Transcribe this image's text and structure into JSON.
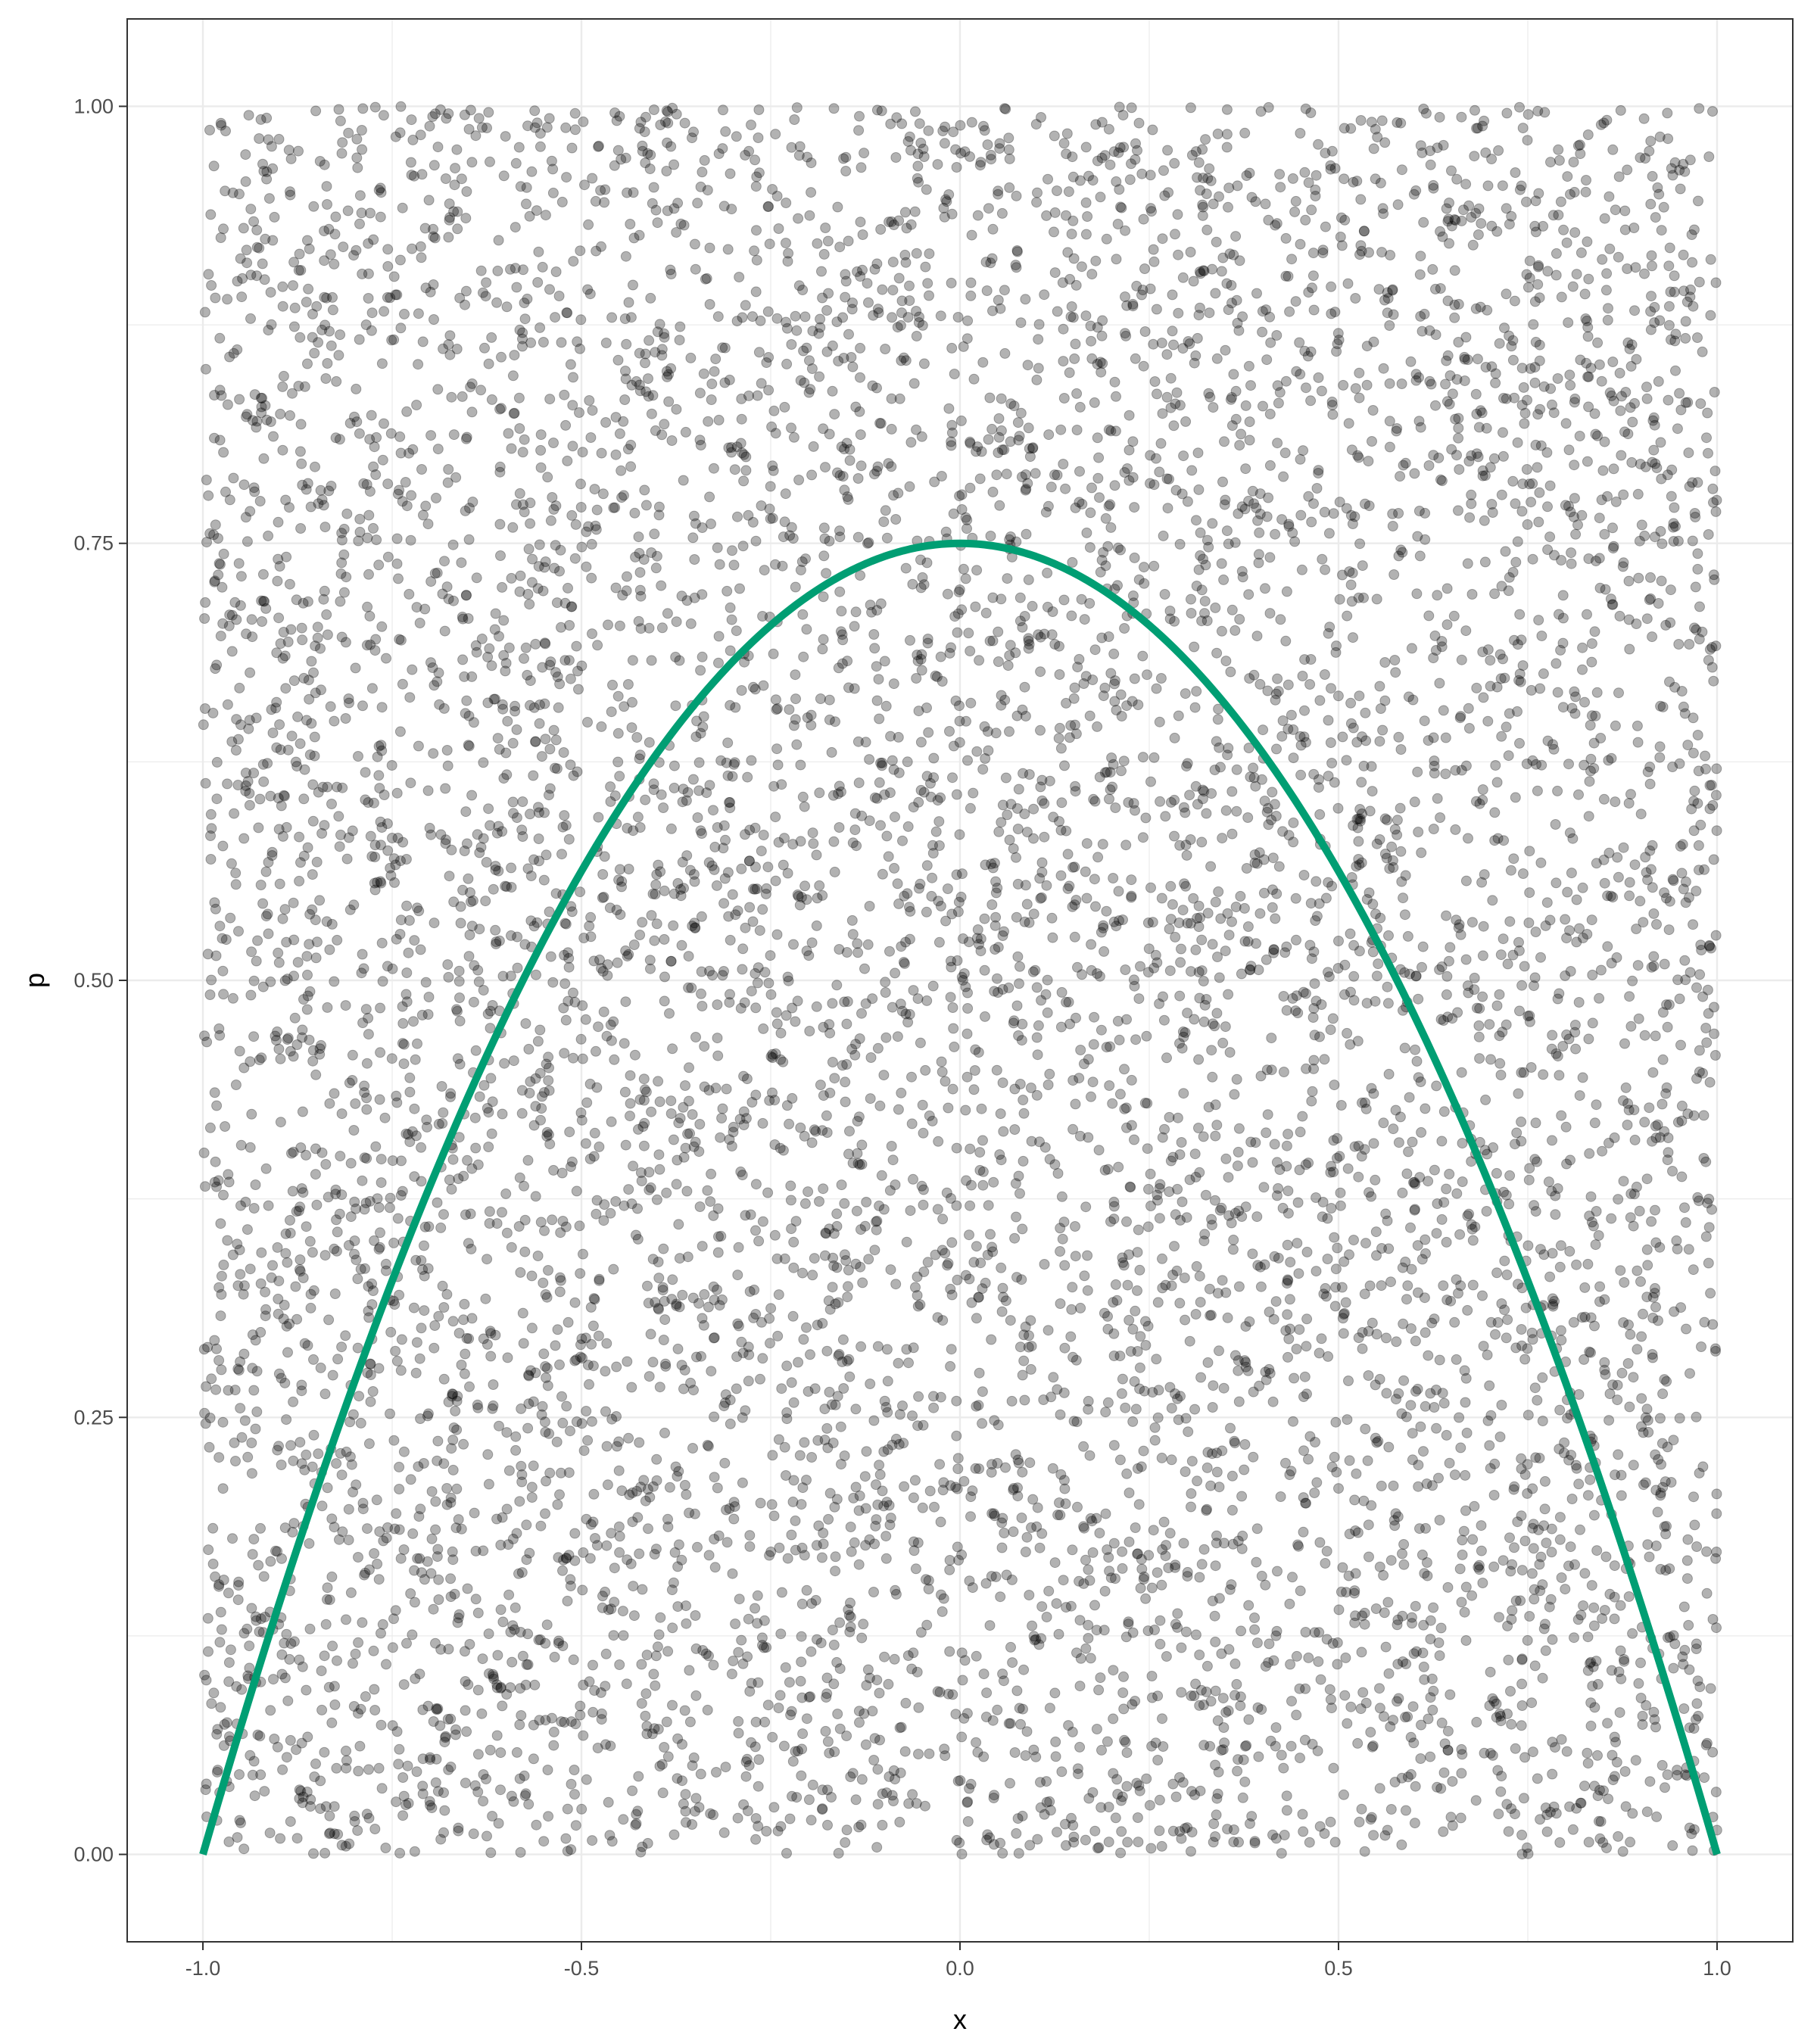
{
  "chart_data": {
    "type": "scatter",
    "title": "",
    "xlabel": "x",
    "ylabel": "p",
    "xlim": [
      -1.1,
      1.1
    ],
    "ylim": [
      -0.05,
      1.05
    ],
    "x_ticks": [
      -1.0,
      -0.5,
      0.0,
      0.5,
      1.0
    ],
    "x_tick_labels": [
      "-1.0",
      "-0.5",
      "0.0",
      "0.5",
      "1.0"
    ],
    "y_ticks": [
      0.0,
      0.25,
      0.5,
      0.75,
      1.0
    ],
    "y_tick_labels": [
      "0.00",
      "0.25",
      "0.50",
      "0.75",
      "1.00"
    ],
    "grid": true,
    "legend": "none",
    "points": {
      "distribution": "uniform",
      "count": 8000,
      "x_range": [
        -1.0,
        1.0
      ],
      "y_range": [
        0.0,
        1.0
      ],
      "color": "#000000",
      "opacity": 0.3
    },
    "curve": {
      "function": "p = 0.75 * (1 - x^2)",
      "x_range": [
        -1.0,
        1.0
      ],
      "color": "#009E73"
    },
    "colors": {
      "panel_background": "#ffffff",
      "grid": "#ebebeb",
      "panel_border": "#333333"
    }
  }
}
